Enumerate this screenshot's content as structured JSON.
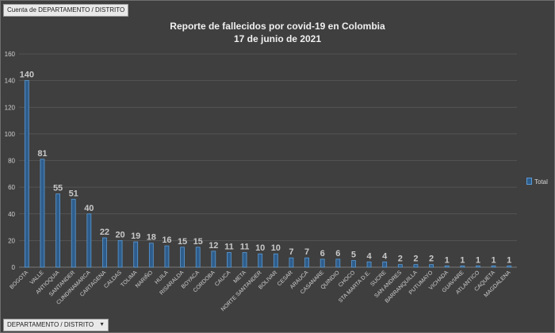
{
  "field_button": "Cuenta de DEPARTAMENTO / DISTRITO",
  "axis_field_button": "DEPARTAMENTO / DISTRITO",
  "dropdown_icon": "dropdown-arrow",
  "legend_label": "Total",
  "colors": {
    "bar": "#2e5d8c",
    "bar_edge": "#5b9bd5",
    "label": "#c8c8c8"
  },
  "chart_data": {
    "type": "bar",
    "title": "Reporte de fallecidos por covid-19 en Colombia",
    "subtitle": "17 de junio de 2021",
    "xlabel": "",
    "ylabel": "",
    "ylim": [
      0,
      160
    ],
    "yticks": [
      0,
      20,
      40,
      60,
      80,
      100,
      120,
      140,
      160
    ],
    "grid": true,
    "legend": "right",
    "categories": [
      "BOGOTA",
      "VALLE",
      "ANTIOQUIA",
      "SANTANDER",
      "CUNDINAMARCA",
      "CARTAGENA",
      "CALDAS",
      "TOLIMA",
      "NARIÑO",
      "HUILA",
      "RISARALDA",
      "BOYACA",
      "CORDOBA",
      "CAUCA",
      "META",
      "NORTE SANTANDER",
      "BOLIVAR",
      "CESAR",
      "ARAUCA",
      "CASANARE",
      "QUINDIO",
      "CHOCO",
      "STA MARTA D.E.",
      "SUCRE",
      "SAN ANDRES",
      "BARRANQUILLA",
      "PUTUMAYO",
      "VICHADA",
      "GUAVIARE",
      "ATLANTICO",
      "CAQUETA",
      "MAGDALENA"
    ],
    "series": [
      {
        "name": "Total",
        "values": [
          140,
          81,
          55,
          51,
          40,
          22,
          20,
          19,
          18,
          16,
          15,
          15,
          12,
          11,
          11,
          10,
          10,
          7,
          7,
          6,
          6,
          5,
          4,
          4,
          2,
          2,
          2,
          1,
          1,
          1,
          1,
          1
        ]
      }
    ]
  }
}
